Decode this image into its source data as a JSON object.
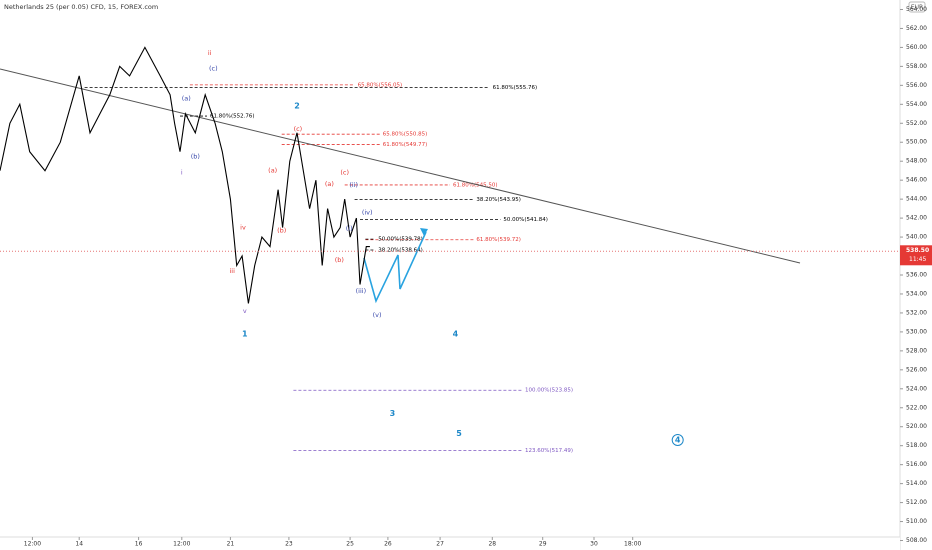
{
  "chart_data": {
    "type": "line",
    "title": "Netherlands 25 (per 0.05) CFD, 15, FOREX.com",
    "currency": "EUR",
    "last_price": {
      "value": 538.5,
      "label": "538.50"
    },
    "countdown": "11:45",
    "xlim": [
      0,
      100
    ],
    "xticks": [
      {
        "value": 3.6,
        "label": "12:00"
      },
      {
        "value": 8.8,
        "label": "14"
      },
      {
        "value": 15.4,
        "label": "16"
      },
      {
        "value": 20.2,
        "label": "12:00"
      },
      {
        "value": 25.6,
        "label": "21"
      },
      {
        "value": 32.1,
        "label": "23"
      },
      {
        "value": 38.9,
        "label": "25"
      },
      {
        "value": 43.1,
        "label": "26"
      },
      {
        "value": 48.9,
        "label": "27"
      },
      {
        "value": 54.7,
        "label": "28"
      },
      {
        "value": 60.3,
        "label": "29"
      },
      {
        "value": 66,
        "label": "30"
      },
      {
        "value": 70.3,
        "label": "18:00"
      }
    ],
    "ylim": [
      507,
      565
    ],
    "yticks": [
      {
        "value": 508,
        "label": "508.00"
      },
      {
        "value": 510,
        "label": "510.00"
      },
      {
        "value": 512,
        "label": "512.00"
      },
      {
        "value": 514,
        "label": "514.00"
      },
      {
        "value": 516,
        "label": "516.00"
      },
      {
        "value": 518,
        "label": "518.00"
      },
      {
        "value": 520,
        "label": "520.00"
      },
      {
        "value": 522,
        "label": "522.00"
      },
      {
        "value": 524,
        "label": "524.00"
      },
      {
        "value": 526,
        "label": "526.00"
      },
      {
        "value": 528,
        "label": "528.00"
      },
      {
        "value": 530,
        "label": "530.00"
      },
      {
        "value": 532,
        "label": "532.00"
      },
      {
        "value": 534,
        "label": "534.00"
      },
      {
        "value": 536,
        "label": "536.00"
      },
      {
        "value": 540,
        "label": "540.00"
      },
      {
        "value": 542,
        "label": "542.00"
      },
      {
        "value": 544,
        "label": "544.00"
      },
      {
        "value": 546,
        "label": "546.00"
      },
      {
        "value": 548,
        "label": "548.00"
      },
      {
        "value": 550,
        "label": "550.00"
      },
      {
        "value": 552,
        "label": "552.00"
      },
      {
        "value": 554,
        "label": "554.00"
      },
      {
        "value": 556,
        "label": "556.00"
      },
      {
        "value": 558,
        "label": "558.00"
      },
      {
        "value": 560,
        "label": "560.00"
      },
      {
        "value": 562,
        "label": "562.00"
      },
      {
        "value": 564,
        "label": "564.00"
      }
    ],
    "series": [
      {
        "color": "#000000",
        "x": [
          0,
          1.1,
          2.2,
          3.3,
          5,
          6.7,
          8.8,
          10,
          11.1,
          12.2,
          13.3,
          14.4,
          16.1,
          17.8,
          18.9,
          19.4,
          20,
          20.6,
          21.7,
          22.8,
          23.9,
          24.7,
          25.6,
          26.3,
          26.9,
          27.6,
          28.3,
          29.1,
          30,
          30.9,
          31.4,
          32.2,
          33,
          33.7,
          34.4,
          35.1,
          35.8,
          36.4,
          37.1,
          37.8,
          38.3,
          38.9,
          39.6,
          40,
          40.7,
          41.1
        ],
        "values": [
          547,
          552,
          554,
          549,
          547,
          550,
          557,
          551,
          553,
          555,
          558,
          557,
          560,
          557,
          555,
          552,
          549,
          553,
          551,
          555,
          552,
          549,
          544,
          537,
          538,
          533,
          537,
          540,
          539,
          545,
          541,
          548,
          551,
          547,
          543,
          546,
          537,
          543,
          540,
          541,
          544,
          540,
          542,
          535,
          539,
          539
        ]
      }
    ],
    "levels": [
      {
        "label": "61.80%(555.76)",
        "value": 555.76,
        "x0": 9.4,
        "x1": 54.4,
        "color": "#000000"
      },
      {
        "label": "65.80%(556.05)",
        "value": 556.05,
        "x0": 21.1,
        "x1": 39.4,
        "color": "#e53935"
      },
      {
        "label": "61.80%(552.76)",
        "value": 552.76,
        "x0": 20,
        "x1": 23,
        "color": "#000000"
      },
      {
        "label": "65.80%(550.85)",
        "value": 550.85,
        "x0": 31.3,
        "x1": 42.2,
        "color": "#e53935"
      },
      {
        "label": "61.80%(549.77)",
        "value": 549.77,
        "x0": 31.3,
        "x1": 42.2,
        "color": "#e53935"
      },
      {
        "label": "61.80%(545.50)",
        "value": 545.5,
        "x0": 38.3,
        "x1": 50,
        "color": "#e53935"
      },
      {
        "label": "38.20%(543.95)",
        "value": 543.95,
        "x0": 39.4,
        "x1": 52.6,
        "color": "#000000"
      },
      {
        "label": "50.00%(541.84)",
        "value": 541.84,
        "x0": 40,
        "x1": 55.6,
        "color": "#000000"
      },
      {
        "label": "61.80%(539.72)",
        "value": 539.72,
        "x0": 40.6,
        "x1": 52.6,
        "color": "#e53935"
      },
      {
        "label": "50.00%(539.78)",
        "value": 539.78,
        "x0": 40.6,
        "x1": 41.7,
        "color": "#000000"
      },
      {
        "label": "38.20%(538.64)",
        "value": 538.64,
        "x0": 40.6,
        "x1": 41.7,
        "color": "#000000"
      },
      {
        "label": "100.00%(523.85)",
        "value": 523.85,
        "x0": 32.6,
        "x1": 58,
        "color": "#7e57c2"
      },
      {
        "label": "123.60%(517.49)",
        "value": 517.49,
        "x0": 32.6,
        "x1": 58,
        "color": "#7e57c2"
      }
    ],
    "wave_labels": [
      {
        "text": "ii",
        "x": 23.3,
        "price": 559.4,
        "color": "#e53935"
      },
      {
        "text": "(c)",
        "x": 23.7,
        "price": 557.8,
        "color": "#3949ab"
      },
      {
        "text": "(a)",
        "x": 20.7,
        "price": 554.6,
        "color": "#3949ab"
      },
      {
        "text": "(b)",
        "x": 21.7,
        "price": 548.5,
        "color": "#3949ab"
      },
      {
        "text": "i",
        "x": 20.2,
        "price": 546.8,
        "color": "#7e57c2"
      },
      {
        "text": "iii",
        "x": 25.8,
        "price": 536.4,
        "color": "#e53935"
      },
      {
        "text": "iv",
        "x": 27,
        "price": 541,
        "color": "#e53935"
      },
      {
        "text": "v",
        "x": 27.2,
        "price": 532.2,
        "color": "#7e57c2"
      },
      {
        "text": "1",
        "x": 27.2,
        "price": 529.8,
        "color": "#1e88c8"
      },
      {
        "text": "2",
        "x": 33,
        "price": 553.8,
        "color": "#1e88c8"
      },
      {
        "text": "(c)",
        "x": 33.1,
        "price": 551.4,
        "color": "#e53935"
      },
      {
        "text": "(a)",
        "x": 30.3,
        "price": 547,
        "color": "#e53935"
      },
      {
        "text": "(b)",
        "x": 31.3,
        "price": 540.7,
        "color": "#e53935"
      },
      {
        "text": "(a)",
        "x": 36.6,
        "price": 545.6,
        "color": "#e53935"
      },
      {
        "text": "(c)",
        "x": 38.3,
        "price": 546.8,
        "color": "#e53935"
      },
      {
        "text": "(ii)",
        "x": 39.3,
        "price": 545.5,
        "color": "#3949ab"
      },
      {
        "text": "(iv)",
        "x": 40.8,
        "price": 542.6,
        "color": "#3949ab"
      },
      {
        "text": "(i)",
        "x": 38.8,
        "price": 540.9,
        "color": "#3949ab"
      },
      {
        "text": "(b)",
        "x": 37.7,
        "price": 537.6,
        "color": "#e53935"
      },
      {
        "text": "(iii)",
        "x": 40.1,
        "price": 534.3,
        "color": "#3949ab"
      },
      {
        "text": "(v)",
        "x": 41.9,
        "price": 531.8,
        "color": "#3949ab"
      },
      {
        "text": "4",
        "x": 50.6,
        "price": 529.8,
        "color": "#1e88c8"
      },
      {
        "text": "3",
        "x": 43.6,
        "price": 521.4,
        "color": "#1e88c8"
      },
      {
        "text": "5",
        "x": 51,
        "price": 519.3,
        "color": "#1e88c8"
      },
      {
        "text": "4",
        "x": 75.3,
        "price": 518.6,
        "color": "#1e88c8",
        "circled": true
      }
    ]
  }
}
